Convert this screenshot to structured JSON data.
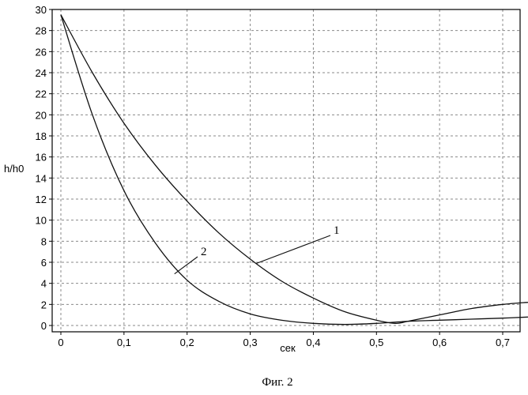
{
  "chart_data": {
    "type": "line",
    "xlabel": "сек",
    "ylabel": "h/h0",
    "caption": "Фиг. 2",
    "xlim": [
      0,
      0.74
    ],
    "ylim": [
      0,
      30
    ],
    "grid": true,
    "x_ticks": [
      0,
      0.1,
      0.2,
      0.3,
      0.4,
      0.5,
      0.6,
      0.7
    ],
    "x_tick_labels": [
      "0",
      "0,1",
      "0,2",
      "0,3",
      "0,4",
      "0,5",
      "0,6",
      "0,7"
    ],
    "y_ticks": [
      0,
      2,
      4,
      6,
      8,
      10,
      12,
      14,
      16,
      18,
      20,
      22,
      24,
      26,
      28,
      30
    ],
    "y_tick_labels": [
      "0",
      "2",
      "4",
      "6",
      "8",
      "10",
      "12",
      "14",
      "16",
      "18",
      "20",
      "22",
      "24",
      "26",
      "28",
      "30"
    ],
    "series": [
      {
        "name": "1",
        "x": [
          0,
          0.05,
          0.1,
          0.15,
          0.2,
          0.25,
          0.3,
          0.35,
          0.4,
          0.45,
          0.5,
          0.53,
          0.55,
          0.6,
          0.65,
          0.7,
          0.74
        ],
        "y": [
          29.5,
          24,
          19.2,
          15.2,
          11.8,
          8.8,
          6.3,
          4.2,
          2.6,
          1.3,
          0.5,
          0.2,
          0.4,
          1.0,
          1.6,
          2.0,
          2.2
        ]
      },
      {
        "name": "2",
        "x": [
          0,
          0.05,
          0.1,
          0.15,
          0.2,
          0.25,
          0.3,
          0.35,
          0.4,
          0.45,
          0.5,
          0.55,
          0.6,
          0.65,
          0.7,
          0.74
        ],
        "y": [
          29.5,
          20,
          12.8,
          7.8,
          4.3,
          2.3,
          1.1,
          0.5,
          0.2,
          0.1,
          0.2,
          0.4,
          0.5,
          0.6,
          0.7,
          0.8
        ]
      }
    ],
    "callouts": [
      {
        "label": "1",
        "x": 0.31,
        "y": 5.9
      },
      {
        "label": "2",
        "x": 0.18,
        "y": 4.9
      }
    ]
  }
}
